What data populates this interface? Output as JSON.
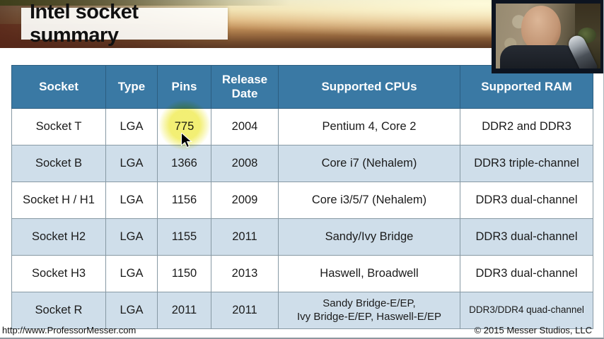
{
  "title": "Intel socket summary",
  "table": {
    "headers": [
      "Socket",
      "Type",
      "Pins",
      "Release Date",
      "Supported CPUs",
      "Supported RAM"
    ],
    "rows": [
      [
        "Socket T",
        "LGA",
        "775",
        "2004",
        "Pentium 4, Core 2",
        "DDR2 and DDR3"
      ],
      [
        "Socket B",
        "LGA",
        "1366",
        "2008",
        "Core i7 (Nehalem)",
        "DDR3 triple-channel"
      ],
      [
        "Socket H / H1",
        "LGA",
        "1156",
        "2009",
        "Core i3/5/7 (Nehalem)",
        "DDR3 dual-channel"
      ],
      [
        "Socket H2",
        "LGA",
        "1155",
        "2011",
        "Sandy/Ivy Bridge",
        "DDR3 dual-channel"
      ],
      [
        "Socket H3",
        "LGA",
        "1150",
        "2013",
        "Haswell, Broadwell",
        "DDR3 dual-channel"
      ],
      [
        "Socket R",
        "LGA",
        "2011",
        "2011",
        "Sandy Bridge-E/EP,\nIvy Bridge-E/EP, Haswell-E/EP",
        "DDR3/DDR4 quad-channel"
      ]
    ]
  },
  "annotations": {
    "highlighted_value": "775",
    "highlight_color": "#f2ee6c"
  },
  "footer": {
    "left": "http://www.ProfessorMesser.com",
    "right": "© 2015 Messer Studios, LLC"
  },
  "colors": {
    "header_bg": "#3a79a4",
    "row_alt_bg": "#cfdeea",
    "row_bg": "#ffffff",
    "header_text": "#ffffff",
    "body_text": "#1b1b1b"
  }
}
